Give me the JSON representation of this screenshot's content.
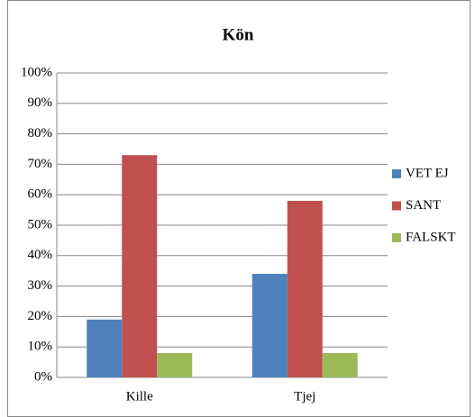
{
  "chart_data": {
    "type": "bar",
    "title": "Kön",
    "categories": [
      "Kille",
      "Tjej"
    ],
    "series": [
      {
        "name": "VET EJ",
        "color": "#4f81bd",
        "values": [
          19,
          34
        ]
      },
      {
        "name": "SANT",
        "color": "#c0504d",
        "values": [
          73,
          58
        ]
      },
      {
        "name": "FALSKT",
        "color": "#9bbb59",
        "values": [
          8,
          8
        ]
      }
    ],
    "ylim": [
      0,
      100
    ],
    "yticks": [
      {
        "value": 0,
        "label": "0%"
      },
      {
        "value": 10,
        "label": "10%"
      },
      {
        "value": 20,
        "label": "20%"
      },
      {
        "value": 30,
        "label": "30%"
      },
      {
        "value": 40,
        "label": "40%"
      },
      {
        "value": 50,
        "label": "50%"
      },
      {
        "value": 60,
        "label": "60%"
      },
      {
        "value": 70,
        "label": "70%"
      },
      {
        "value": 80,
        "label": "80%"
      },
      {
        "value": 90,
        "label": "90%"
      },
      {
        "value": 100,
        "label": "100%"
      }
    ],
    "grid": true,
    "legend": "right"
  }
}
